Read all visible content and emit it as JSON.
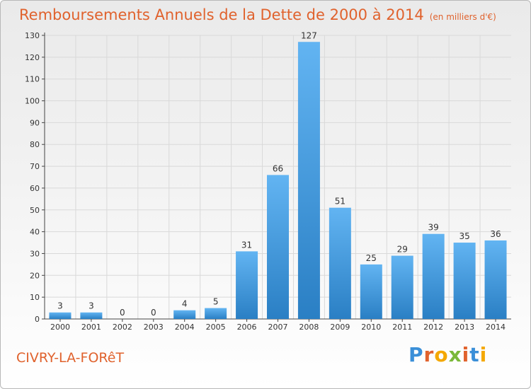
{
  "header": {
    "title": "Remboursements Annuels de la Dette de 2000 à 2014",
    "subtitle": "(en milliers d'€)"
  },
  "footer": {
    "commune": "CIVRY-LA-FORêT",
    "logo_text": "Proxiti"
  },
  "colors": {
    "title": "#e0622d",
    "bar_light": "#62b4f2",
    "bar_dark": "#2a7fc4",
    "grid": "#d9d9d9",
    "logo": [
      "#3a8fd8",
      "#e0622d",
      "#f4a800",
      "#7ab839",
      "#e0622d",
      "#3a8fd8",
      "#f4a800"
    ]
  },
  "chart_data": {
    "type": "bar",
    "categories": [
      "2000",
      "2001",
      "2002",
      "2003",
      "2004",
      "2005",
      "2006",
      "2007",
      "2008",
      "2009",
      "2010",
      "2011",
      "2012",
      "2013",
      "2014"
    ],
    "values": [
      3,
      3,
      0,
      0,
      4,
      5,
      31,
      66,
      127,
      51,
      25,
      29,
      39,
      35,
      36
    ],
    "title": "Remboursements Annuels de la Dette de 2000 à 2014",
    "ylim": [
      0,
      130
    ],
    "yticks": [
      0,
      10,
      20,
      30,
      40,
      50,
      60,
      70,
      80,
      90,
      100,
      110,
      120,
      130
    ],
    "grid": true,
    "legend": "none"
  }
}
